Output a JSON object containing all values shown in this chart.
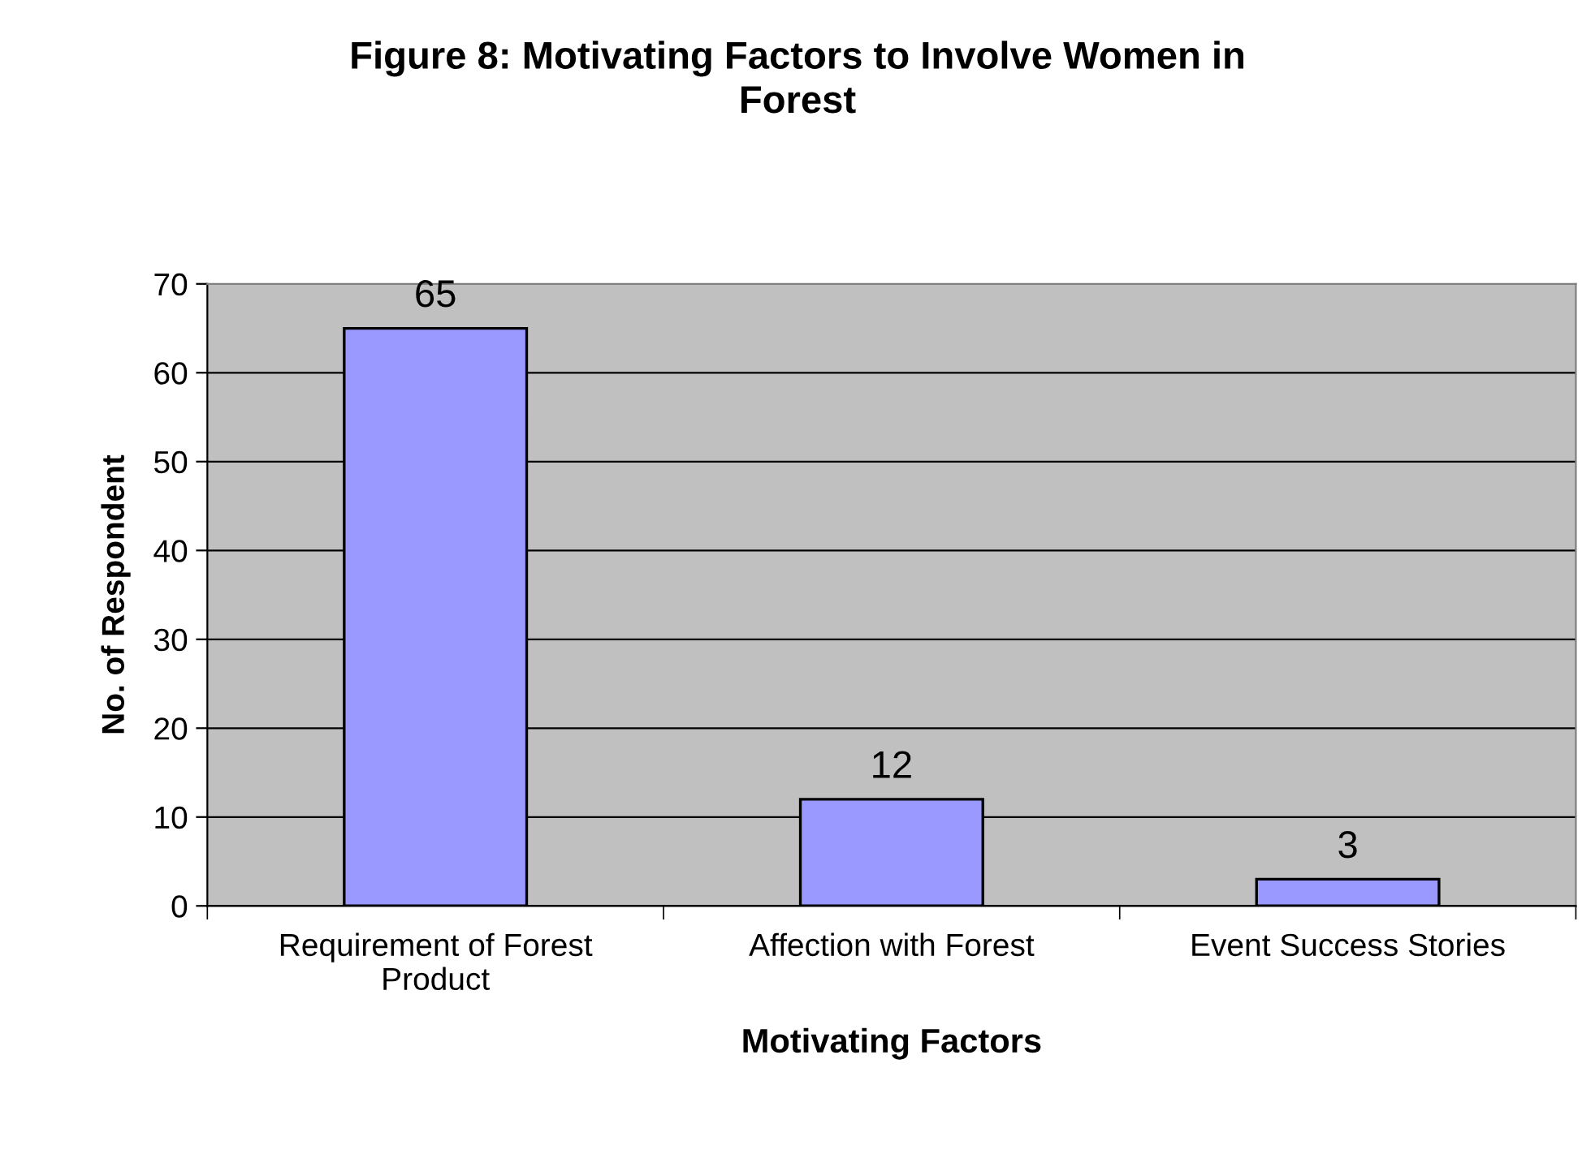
{
  "chart_data": {
    "type": "bar",
    "title": "Figure 8: Motivating Factors to Involve Women in\nForest",
    "xlabel": "Motivating Factors",
    "ylabel": "No. of Respondent",
    "categories": [
      "Requirement of Forest\nProduct",
      "Affection with Forest",
      "Event Success Stories"
    ],
    "values": [
      65,
      12,
      3
    ],
    "color": "#9999ff",
    "ylim": [
      0,
      70
    ],
    "yticks": [
      0,
      10,
      20,
      30,
      40,
      50,
      60,
      70
    ],
    "grid": "y",
    "data_labels": true,
    "legend": false
  }
}
